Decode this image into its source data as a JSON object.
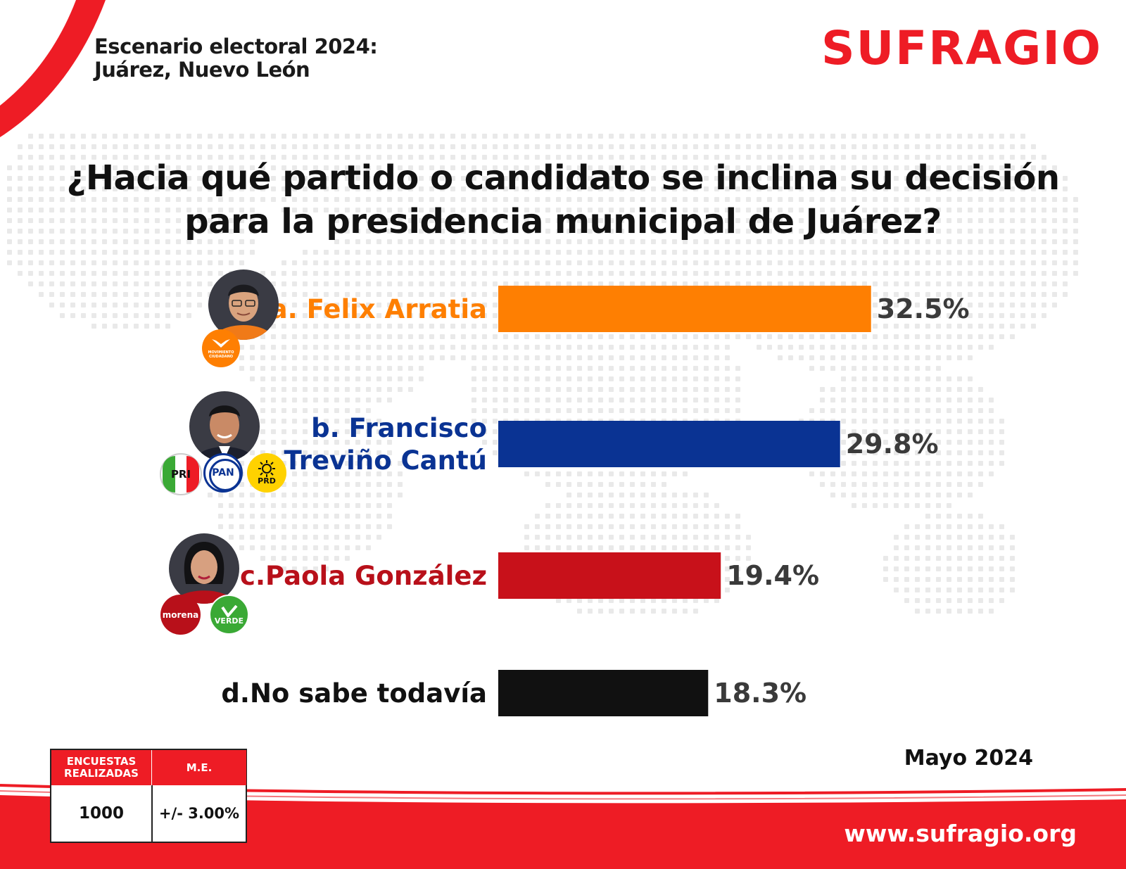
{
  "header": {
    "title_line1": "Escenario electoral 2024:",
    "title_line2": "Juárez, Nuevo León",
    "logo": "SUFRAGIO"
  },
  "question": {
    "line1": "¿Hacia qué partido o candidato se inclina su decisión",
    "line2": "para la presidencia municipal de Juárez?"
  },
  "chart_data": {
    "type": "bar",
    "orientation": "horizontal",
    "title": "¿Hacia qué partido o candidato se inclina su decisión para la presidencia municipal de Juárez?",
    "categories": [
      "a. Felix Arratia",
      "b. Francisco Treviño Cantú",
      "c.Paola González",
      "d.No sabe todavía"
    ],
    "category_lines": [
      [
        "a. Felix Arratia"
      ],
      [
        "b. Francisco",
        "Treviño Cantú"
      ],
      [
        "c.Paola González"
      ],
      [
        "d.No sabe todavía"
      ]
    ],
    "values": [
      32.5,
      29.8,
      19.4,
      18.3
    ],
    "value_labels": [
      "32.5%",
      "29.8%",
      "19.4%",
      "18.3%"
    ],
    "colors": [
      "#fe7f02",
      "#0a3393",
      "#c8111a",
      "#111111"
    ],
    "label_colors": [
      "#fe7f02",
      "#0a3393",
      "#b8101a",
      "#111111"
    ],
    "grid": false,
    "legend": "none"
  },
  "parties": {
    "felix": [
      "MOVIMIENTO CIUDADANO"
    ],
    "francisco": [
      "PRI",
      "PAN",
      "PRD"
    ],
    "paola": [
      "morena",
      "VERDE"
    ]
  },
  "party_colors": {
    "mc": "#fe7f02",
    "pri": "#ffffff",
    "pan": "#0a3393",
    "prd": "#ffd200",
    "morena": "#b8101a",
    "verde": "#3aa935"
  },
  "stats": {
    "col1_header": "ENCUESTAS REALIZADAS",
    "col2_header": "M.E.",
    "col1_value": "1000",
    "col2_value": "+/- 3.00%"
  },
  "footer": {
    "date": "Mayo 2024",
    "url": "www.sufragio.org"
  },
  "accent": "#ee1c25"
}
